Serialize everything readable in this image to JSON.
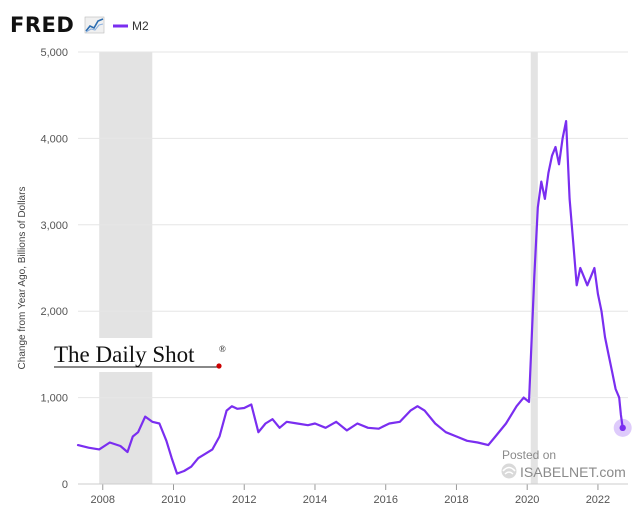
{
  "header": {
    "logo_text": "FRED",
    "logo_icon": "chart-line-icon",
    "legend_label": "M2",
    "legend_color": "#7a2ef0"
  },
  "watermarks": {
    "daily_shot": "The Daily Shot",
    "daily_shot_mark": "®",
    "posted_on": "Posted on",
    "isabelnet": "ISABELNET.com"
  },
  "chart_data": {
    "type": "line",
    "title": "",
    "xlabel": "",
    "ylabel": "Change from Year Ago, Billions of Dollars",
    "xlim": [
      2007.3,
      2022.85
    ],
    "ylim": [
      0,
      5000
    ],
    "x_ticks": [
      2008,
      2010,
      2012,
      2014,
      2016,
      2018,
      2020,
      2022
    ],
    "x_tick_labels": [
      "2008",
      "2010",
      "2012",
      "2014",
      "2016",
      "2018",
      "2020",
      "2022"
    ],
    "y_ticks": [
      0,
      1000,
      2000,
      3000,
      4000,
      5000
    ],
    "y_tick_labels": [
      "0",
      "1,000",
      "2,000",
      "3,000",
      "4,000",
      "5,000"
    ],
    "grid": true,
    "recessions": [
      [
        2007.9,
        2009.4
      ],
      [
        2020.1,
        2020.3
      ]
    ],
    "series": [
      {
        "name": "M2",
        "color": "#7a2ef0",
        "x": [
          2007.3,
          2007.6,
          2007.9,
          2008.2,
          2008.5,
          2008.7,
          2008.85,
          2009.0,
          2009.2,
          2009.4,
          2009.6,
          2009.8,
          2009.95,
          2010.1,
          2010.3,
          2010.5,
          2010.7,
          2010.9,
          2011.1,
          2011.3,
          2011.5,
          2011.65,
          2011.8,
          2012.0,
          2012.2,
          2012.4,
          2012.6,
          2012.8,
          2013.0,
          2013.2,
          2013.5,
          2013.8,
          2014.0,
          2014.3,
          2014.6,
          2014.9,
          2015.2,
          2015.5,
          2015.8,
          2016.1,
          2016.4,
          2016.7,
          2016.9,
          2017.1,
          2017.4,
          2017.7,
          2018.0,
          2018.3,
          2018.6,
          2018.9,
          2019.1,
          2019.4,
          2019.7,
          2019.9,
          2020.05,
          2020.2,
          2020.3,
          2020.4,
          2020.5,
          2020.6,
          2020.7,
          2020.8,
          2020.9,
          2021.0,
          2021.1,
          2021.2,
          2021.3,
          2021.4,
          2021.5,
          2021.6,
          2021.7,
          2021.8,
          2021.9,
          2022.0,
          2022.1,
          2022.2,
          2022.3,
          2022.4,
          2022.5,
          2022.6,
          2022.65,
          2022.7
        ],
        "values": [
          450,
          420,
          400,
          480,
          440,
          370,
          550,
          600,
          780,
          720,
          700,
          500,
          300,
          120,
          150,
          200,
          300,
          350,
          400,
          550,
          850,
          900,
          870,
          880,
          920,
          600,
          700,
          750,
          650,
          720,
          700,
          680,
          700,
          650,
          720,
          620,
          700,
          650,
          640,
          700,
          720,
          850,
          900,
          850,
          700,
          600,
          550,
          500,
          480,
          450,
          550,
          700,
          900,
          1000,
          950,
          2400,
          3200,
          3500,
          3300,
          3600,
          3800,
          3900,
          3700,
          4000,
          4200,
          3300,
          2800,
          2300,
          2500,
          2400,
          2300,
          2400,
          2500,
          2200,
          2000,
          1700,
          1500,
          1300,
          1100,
          1000,
          800,
          650
        ]
      }
    ]
  }
}
